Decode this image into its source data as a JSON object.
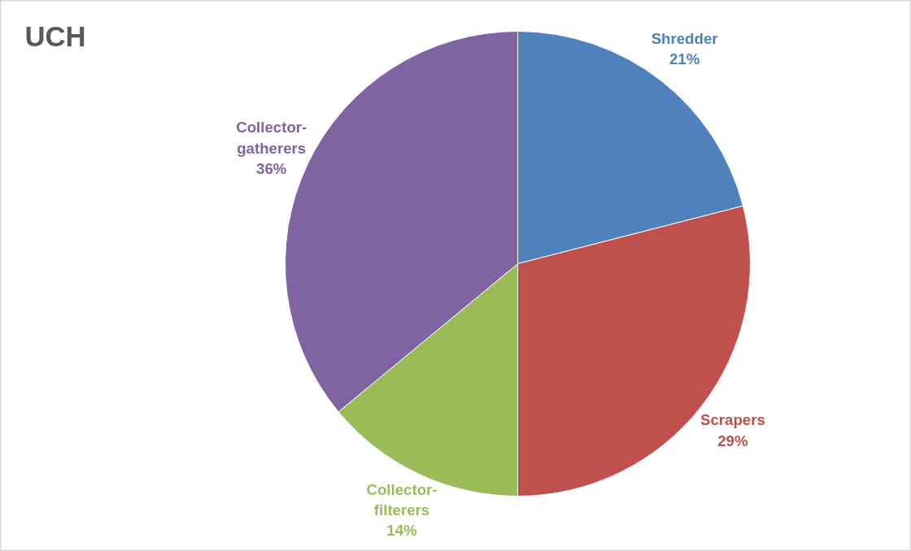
{
  "chart_data": {
    "type": "pie",
    "title": "UCH",
    "categories": [
      "Shredder",
      "Scrapers",
      "Collector-filterers",
      "Collector-gatherers"
    ],
    "values": [
      21,
      29,
      14,
      36
    ],
    "colors": [
      "#4f81bd",
      "#c0504d",
      "#9bbb59",
      "#8064a2"
    ],
    "value_labels": [
      "21%",
      "29%",
      "14%",
      "36%"
    ]
  }
}
